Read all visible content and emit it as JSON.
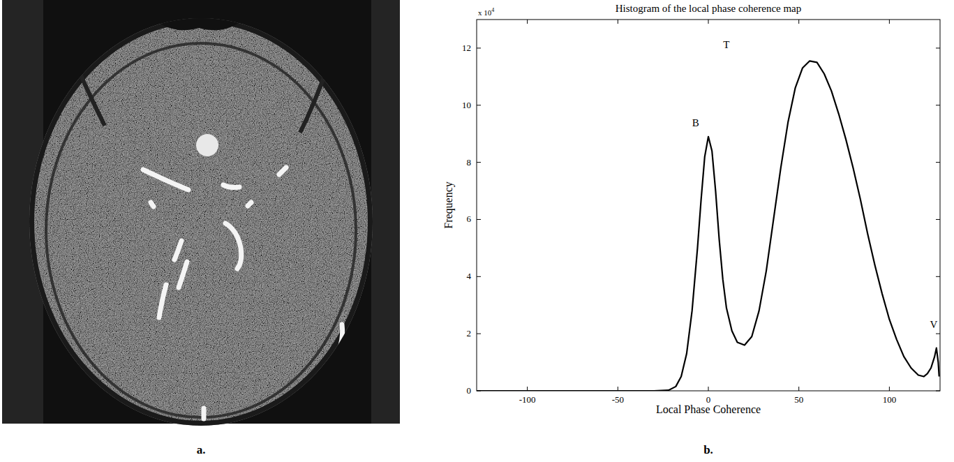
{
  "chart_data": {
    "type": "line",
    "title": "Histogram of the local phase coherence map",
    "x_label": "Local Phase Coherence",
    "y_label": "Frequency",
    "y_multiplier": {
      "base": "x 10",
      "exponent": "4"
    },
    "panel_labels": [
      "a.",
      "b."
    ],
    "annotations": [
      {
        "text": "B",
        "x": -7,
        "y": 9.25
      },
      {
        "text": "T",
        "x": 10,
        "y": 12.0
      },
      {
        "text": "V",
        "x": 124.5,
        "y": 2.2
      }
    ],
    "x": [
      -128,
      -30,
      -22,
      -18,
      -15,
      -12,
      -9,
      -6,
      -4,
      -2,
      0,
      2,
      4,
      6,
      8,
      10,
      13,
      16,
      20,
      24,
      28,
      32,
      36,
      40,
      44,
      48,
      52,
      56,
      60,
      64,
      68,
      72,
      76,
      80,
      84,
      88,
      92,
      96,
      100,
      104,
      108,
      112,
      116,
      119,
      121,
      123,
      125,
      126,
      127,
      127.5
    ],
    "values": [
      0,
      0,
      0.02,
      0.15,
      0.5,
      1.3,
      2.8,
      5.0,
      6.7,
      8.2,
      8.9,
      8.4,
      7.0,
      5.3,
      3.9,
      2.9,
      2.1,
      1.7,
      1.6,
      1.9,
      2.8,
      4.2,
      6.0,
      7.8,
      9.4,
      10.6,
      11.3,
      11.55,
      11.5,
      11.1,
      10.5,
      9.7,
      8.8,
      7.8,
      6.7,
      5.5,
      4.4,
      3.4,
      2.5,
      1.8,
      1.2,
      0.8,
      0.55,
      0.5,
      0.6,
      0.8,
      1.2,
      1.5,
      1.0,
      0.5
    ],
    "color": "#000000",
    "xlim": [
      -128,
      128
    ],
    "xticks": [
      -100,
      -50,
      0,
      50,
      100
    ],
    "ylim": [
      0,
      13
    ],
    "yticks": [
      0,
      2,
      4,
      6,
      8,
      10,
      12
    ],
    "grid": false
  }
}
